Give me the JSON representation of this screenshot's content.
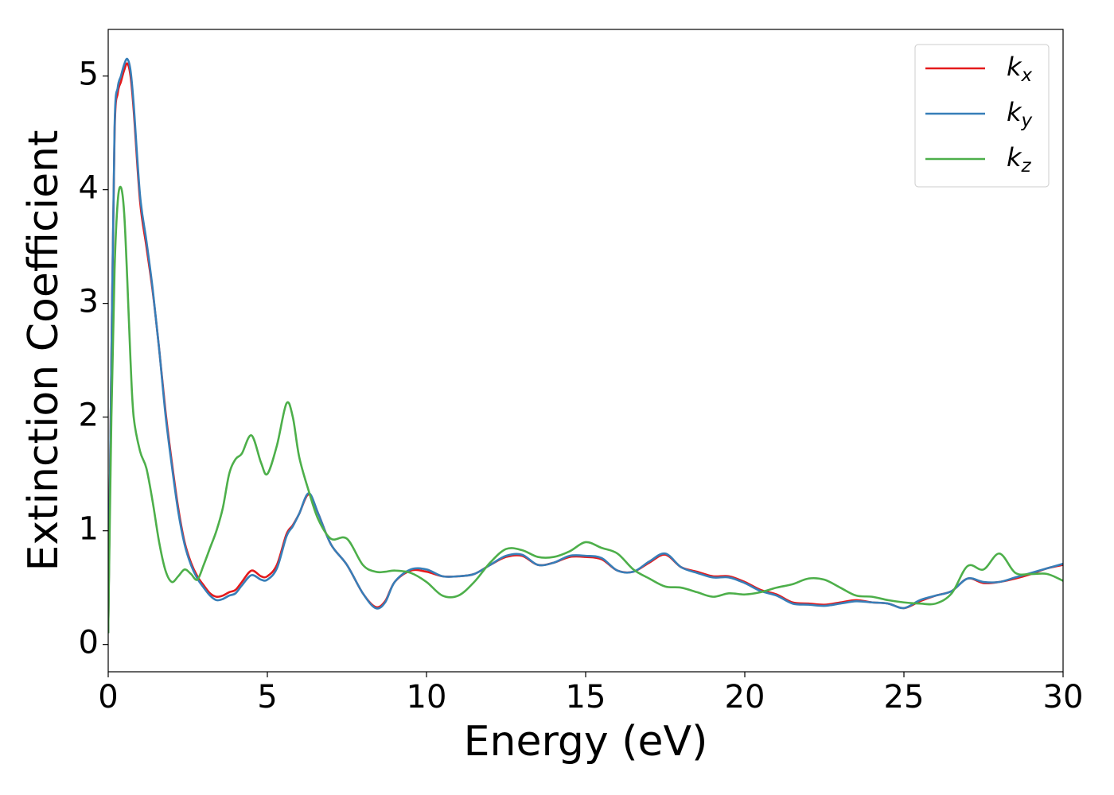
{
  "chart_data": {
    "type": "line",
    "xlabel": "Energy (eV)",
    "ylabel": "Extinction Coefficient",
    "x": [
      0,
      0.1,
      0.2,
      0.3,
      0.4,
      0.5,
      0.6,
      0.7,
      0.8,
      1.0,
      1.2,
      1.4,
      1.6,
      1.8,
      2.0,
      2.2,
      2.4,
      2.6,
      2.8,
      3.0,
      3.2,
      3.4,
      3.6,
      3.8,
      4.0,
      4.2,
      4.5,
      4.8,
      5.0,
      5.3,
      5.6,
      5.8,
      6.0,
      6.3,
      6.6,
      7.0,
      7.5,
      8.0,
      8.4,
      8.7,
      9.0,
      9.5,
      10.0,
      10.5,
      11.0,
      11.5,
      12.0,
      12.5,
      13.0,
      13.5,
      14.0,
      14.5,
      15.0,
      15.5,
      16.0,
      16.5,
      17.0,
      17.5,
      18.0,
      18.5,
      19.0,
      19.5,
      20.0,
      20.5,
      21.0,
      21.5,
      22.0,
      22.5,
      23.0,
      23.5,
      24.0,
      24.5,
      25.0,
      25.5,
      26.0,
      26.5,
      27.0,
      27.5,
      28.0,
      28.5,
      29.0,
      29.5,
      30.0
    ],
    "series": [
      {
        "name": "kx",
        "color": "#e41a1c",
        "values": [
          0.1,
          2.5,
          4.5,
          4.85,
          4.95,
          5.05,
          5.11,
          5.0,
          4.7,
          3.9,
          3.5,
          3.1,
          2.6,
          2.05,
          1.6,
          1.2,
          0.9,
          0.72,
          0.6,
          0.52,
          0.45,
          0.42,
          0.43,
          0.46,
          0.48,
          0.55,
          0.65,
          0.6,
          0.6,
          0.7,
          0.97,
          1.05,
          1.15,
          1.32,
          1.15,
          0.88,
          0.7,
          0.45,
          0.33,
          0.38,
          0.55,
          0.65,
          0.64,
          0.6,
          0.6,
          0.62,
          0.7,
          0.77,
          0.78,
          0.7,
          0.72,
          0.77,
          0.77,
          0.75,
          0.65,
          0.64,
          0.72,
          0.79,
          0.68,
          0.64,
          0.6,
          0.6,
          0.55,
          0.48,
          0.44,
          0.37,
          0.36,
          0.35,
          0.37,
          0.39,
          0.37,
          0.36,
          0.32,
          0.38,
          0.43,
          0.47,
          0.58,
          0.54,
          0.55,
          0.58,
          0.62,
          0.67,
          0.7
        ]
      },
      {
        "name": "ky",
        "color": "#377eb8",
        "values": [
          0.1,
          2.5,
          4.55,
          4.9,
          5.0,
          5.1,
          5.15,
          5.05,
          4.75,
          3.95,
          3.55,
          3.12,
          2.6,
          2.02,
          1.57,
          1.17,
          0.88,
          0.7,
          0.58,
          0.5,
          0.43,
          0.39,
          0.4,
          0.43,
          0.45,
          0.52,
          0.61,
          0.57,
          0.57,
          0.67,
          0.95,
          1.04,
          1.15,
          1.33,
          1.15,
          0.88,
          0.7,
          0.45,
          0.32,
          0.37,
          0.55,
          0.66,
          0.66,
          0.6,
          0.6,
          0.62,
          0.7,
          0.78,
          0.79,
          0.7,
          0.72,
          0.78,
          0.78,
          0.76,
          0.65,
          0.64,
          0.73,
          0.8,
          0.68,
          0.63,
          0.59,
          0.59,
          0.54,
          0.47,
          0.43,
          0.36,
          0.35,
          0.34,
          0.36,
          0.38,
          0.37,
          0.36,
          0.32,
          0.39,
          0.43,
          0.47,
          0.58,
          0.55,
          0.55,
          0.59,
          0.63,
          0.67,
          0.71
        ]
      },
      {
        "name": "kz",
        "color": "#4daf4a",
        "values": [
          0.1,
          2.0,
          3.3,
          3.9,
          4.02,
          3.8,
          3.2,
          2.5,
          2.0,
          1.7,
          1.55,
          1.25,
          0.9,
          0.65,
          0.55,
          0.6,
          0.66,
          0.62,
          0.57,
          0.7,
          0.85,
          1.0,
          1.2,
          1.5,
          1.63,
          1.68,
          1.84,
          1.6,
          1.5,
          1.75,
          2.12,
          2.0,
          1.65,
          1.35,
          1.1,
          0.93,
          0.93,
          0.7,
          0.64,
          0.64,
          0.65,
          0.63,
          0.55,
          0.43,
          0.43,
          0.55,
          0.72,
          0.84,
          0.83,
          0.77,
          0.77,
          0.82,
          0.9,
          0.85,
          0.8,
          0.66,
          0.58,
          0.51,
          0.5,
          0.46,
          0.42,
          0.45,
          0.44,
          0.46,
          0.5,
          0.53,
          0.58,
          0.57,
          0.5,
          0.43,
          0.42,
          0.39,
          0.37,
          0.36,
          0.36,
          0.45,
          0.69,
          0.66,
          0.8,
          0.63,
          0.62,
          0.62,
          0.56
        ]
      }
    ],
    "xlim": [
      0,
      30
    ],
    "xticks": [
      0,
      5,
      10,
      15,
      20,
      25,
      30
    ],
    "ylim": [
      -0.24,
      5.41
    ],
    "yticks": [
      0,
      1,
      2,
      3,
      4,
      5
    ],
    "legend": "upper right"
  }
}
